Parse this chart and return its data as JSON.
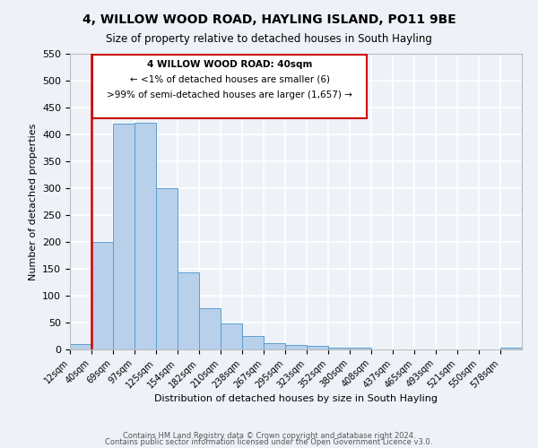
{
  "title": "4, WILLOW WOOD ROAD, HAYLING ISLAND, PO11 9BE",
  "subtitle": "Size of property relative to detached houses in South Hayling",
  "xlabel": "Distribution of detached houses by size in South Hayling",
  "ylabel": "Number of detached properties",
  "bar_labels": [
    "12sqm",
    "40sqm",
    "69sqm",
    "97sqm",
    "125sqm",
    "154sqm",
    "182sqm",
    "210sqm",
    "238sqm",
    "267sqm",
    "295sqm",
    "323sqm",
    "352sqm",
    "380sqm",
    "408sqm",
    "437sqm",
    "465sqm",
    "493sqm",
    "521sqm",
    "550sqm",
    "578sqm"
  ],
  "bar_values": [
    10,
    200,
    420,
    422,
    300,
    143,
    77,
    48,
    25,
    12,
    9,
    6,
    4,
    3,
    0,
    0,
    0,
    0,
    0,
    0,
    3
  ],
  "bar_color": "#b8d0ea",
  "bar_edge_color": "#5a9fd4",
  "ylim": [
    0,
    550
  ],
  "yticks": [
    0,
    50,
    100,
    150,
    200,
    250,
    300,
    350,
    400,
    450,
    500,
    550
  ],
  "marker_label_line1": "4 WILLOW WOOD ROAD: 40sqm",
  "marker_label_line2": "← <1% of detached houses are smaller (6)",
  "marker_label_line3": ">99% of semi-detached houses are larger (1,657) →",
  "box_color": "#cc0000",
  "footer_line1": "Contains HM Land Registry data © Crown copyright and database right 2024.",
  "footer_line2": "Contains public sector information licensed under the Open Government Licence v3.0.",
  "background_color": "#eef2f8",
  "grid_color": "#ffffff",
  "title_fontsize": 10,
  "subtitle_fontsize": 8.5,
  "axis_label_fontsize": 8,
  "tick_fontsize": 7,
  "footer_fontsize": 6
}
